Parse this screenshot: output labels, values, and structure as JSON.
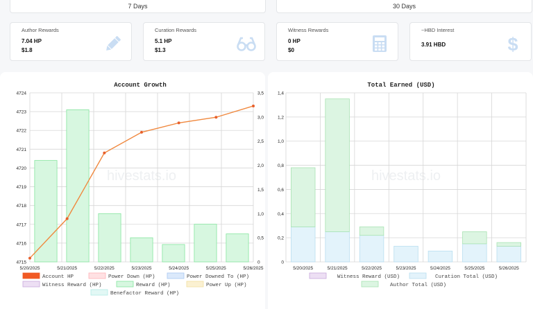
{
  "tabs": [
    {
      "label": "7 Days"
    },
    {
      "label": "30 Days"
    }
  ],
  "cards": [
    {
      "title": "Author Rewards",
      "line1": "7.04 HP",
      "line2": "$1.8",
      "icon": "pencil-icon"
    },
    {
      "title": "Curation Rewards",
      "line1": "5.1 HP",
      "line2": "$1.3",
      "icon": "glasses-icon"
    },
    {
      "title": "Witness Rewards",
      "line1": "0 HP",
      "line2": "$0",
      "icon": "calculator-icon"
    },
    {
      "title": "~HBD Interest",
      "line1": "3.91 HBD",
      "line2": "",
      "icon": "dollar-icon"
    }
  ],
  "watermark": "hivestats.io",
  "colors": {
    "account_hp": "#f15a24",
    "power_down": "#ffb3b8",
    "power_downed_to": "#a9c8f2",
    "witness_reward": "#c9a9dd",
    "reward": "#86e59f",
    "power_up": "#f2dfa0",
    "benefactor": "#b3ece6",
    "curation_total": "#b9def0",
    "author_total": "#a8e3b3"
  },
  "chart_data": [
    {
      "type": "bar",
      "title": "Account Growth",
      "categories": [
        "5/20/2025",
        "5/21/2025",
        "5/22/2025",
        "5/23/2025",
        "5/24/2025",
        "5/25/2025",
        "5/26/2025"
      ],
      "y_left_ticks": [
        "4715",
        "4716",
        "4717",
        "4718",
        "4719",
        "4720",
        "4721",
        "4722",
        "4723",
        "4724"
      ],
      "ylim_left": [
        4715,
        4724
      ],
      "y_right_ticks": [
        "0",
        "0,5",
        "1,0",
        "1,5",
        "2,0",
        "2,5",
        "3,0",
        "3,5"
      ],
      "ylim_right": [
        0,
        3.5
      ],
      "series": [
        {
          "name": "Account HP",
          "kind": "line",
          "axis": "left",
          "values": [
            4715.2,
            4717.3,
            4720.8,
            4721.9,
            4722.4,
            4722.7,
            4723.3
          ]
        },
        {
          "name": "Power Down (HP)",
          "kind": "bar",
          "axis": "right",
          "values": [
            0,
            0,
            0,
            0,
            0,
            0,
            0
          ]
        },
        {
          "name": "Power Downed To (HP)",
          "kind": "bar",
          "axis": "right",
          "values": [
            0,
            0,
            0,
            0,
            0,
            0,
            0
          ]
        },
        {
          "name": "Witness Reward (HP)",
          "kind": "bar",
          "axis": "right",
          "values": [
            0,
            0,
            0,
            0,
            0,
            0,
            0
          ]
        },
        {
          "name": "Reward (HP)",
          "kind": "bar",
          "axis": "right",
          "values": [
            2.1,
            3.15,
            1.0,
            0.5,
            0.36,
            0.78,
            0.58
          ]
        },
        {
          "name": "Power Up (HP)",
          "kind": "bar",
          "axis": "right",
          "values": [
            0,
            0,
            0,
            0,
            0,
            0,
            0
          ]
        },
        {
          "name": "Benefactor Reward (HP)",
          "kind": "bar",
          "axis": "right",
          "values": [
            0,
            0,
            0,
            0,
            0,
            0,
            0
          ]
        }
      ],
      "legend": [
        "Account HP",
        "Power Down (HP)",
        "Power Downed To (HP)",
        "Witness Reward (HP)",
        "Reward (HP)",
        "Power Up (HP)",
        "Benefactor Reward (HP)"
      ],
      "legend_placement": "bottom",
      "grid": true
    },
    {
      "type": "bar",
      "title": "Total Earned (USD)",
      "categories": [
        "5/20/2025",
        "5/21/2025",
        "5/22/2025",
        "5/23/2025",
        "5/24/2025",
        "5/25/2025",
        "5/26/2025"
      ],
      "y_ticks": [
        "0",
        "0,2",
        "0,4",
        "0,6",
        "0,8",
        "1,0",
        "1,2",
        "1,4"
      ],
      "ylim": [
        0,
        1.4
      ],
      "stacked": true,
      "series": [
        {
          "name": "Witness Reward (USD)",
          "values": [
            0,
            0,
            0,
            0,
            0,
            0,
            0
          ]
        },
        {
          "name": "Curation Total (USD)",
          "values": [
            0.29,
            0.25,
            0.22,
            0.13,
            0.09,
            0.15,
            0.13
          ]
        },
        {
          "name": "Author Total (USD)",
          "values": [
            0.49,
            1.1,
            0.07,
            0,
            0,
            0.1,
            0.03
          ]
        }
      ],
      "legend": [
        "Witness Reward (USD)",
        "Curation Total (USD)",
        "Author Total (USD)"
      ],
      "legend_placement": "bottom",
      "grid": true
    }
  ]
}
